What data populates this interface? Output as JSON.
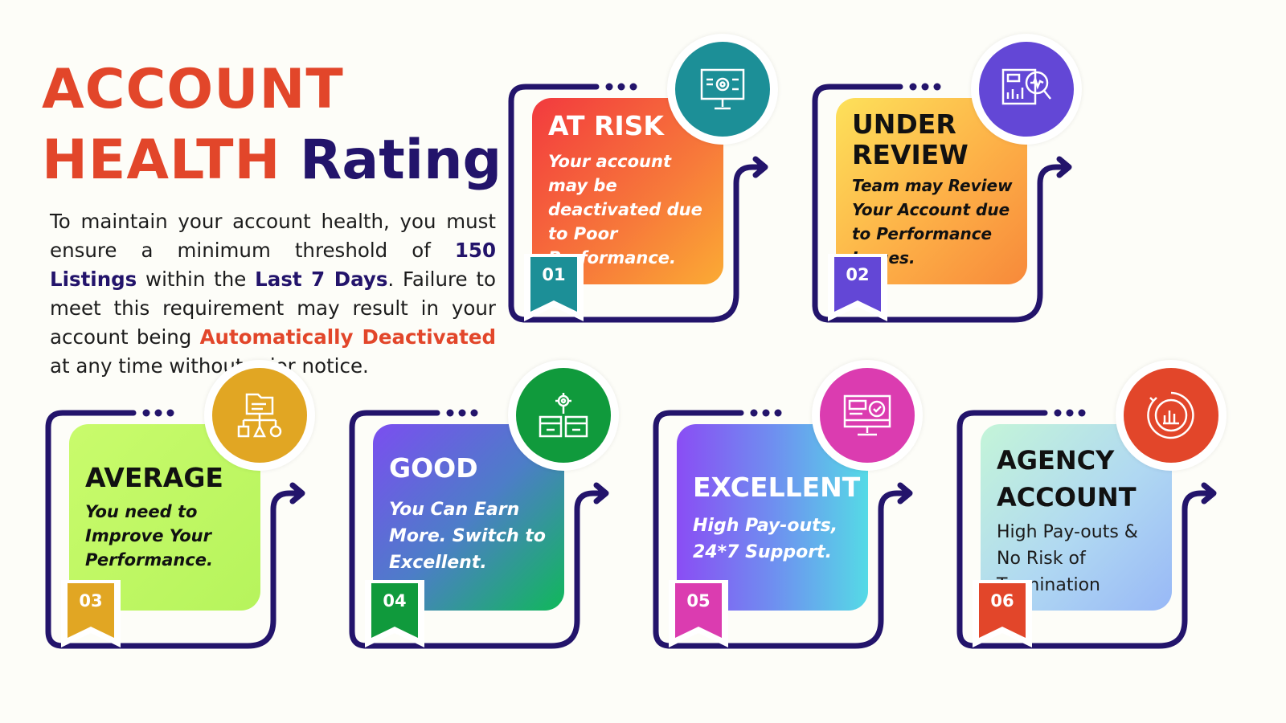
{
  "title": {
    "line1": "ACCOUNT",
    "health": "HEALTH",
    "rating": "Rating"
  },
  "intro": {
    "p1": "To maintain your account health, you must ensure a minimum threshold of ",
    "listings": "150 Listings",
    "p2": " within the ",
    "days": "Last 7 Days",
    "p3": ". Failure to meet this requirement may result in your account being ",
    "deactivated": "Automatically Deactivated",
    "p4": " at any time without prior notice."
  },
  "cards": [
    {
      "number": "01",
      "heading": "AT RISK",
      "description": "Your account may be deactivated due to Poor Performance.",
      "icon": "presentation-gear-icon",
      "accent": "#1c8f97"
    },
    {
      "number": "02",
      "heading": "UNDER REVIEW",
      "description": "Team may Review Your Account due to Performance Issues.",
      "icon": "report-magnifier-icon",
      "accent": "#6347d6"
    },
    {
      "number": "03",
      "heading": "AVERAGE",
      "description": "You need to Improve Your Performance.",
      "icon": "folder-hierarchy-icon",
      "accent": "#e1a623"
    },
    {
      "number": "04",
      "heading": "GOOD",
      "description": "You Can Earn More. Switch to Excellent.",
      "icon": "gear-boxes-icon",
      "accent": "#109a3c"
    },
    {
      "number": "05",
      "heading": "EXCELLENT",
      "description": "High Pay-outs, 24*7 Support.",
      "icon": "monitor-check-icon",
      "accent": "#db3cb0"
    },
    {
      "number": "06",
      "heading": "AGENCY ACCOUNT",
      "description": "High Pay-outs & No Risk of Termination",
      "icon": "chart-circle-icon",
      "accent": "#e2462a"
    }
  ]
}
